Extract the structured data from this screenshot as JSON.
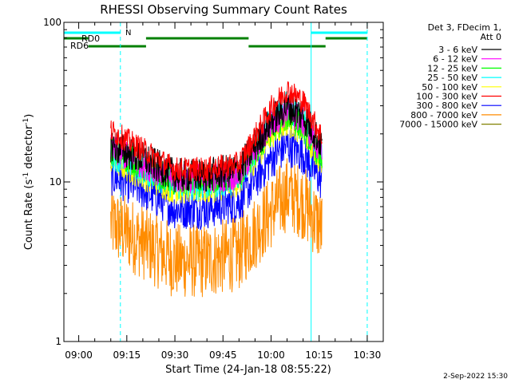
{
  "chart_data": {
    "type": "line",
    "title": "RHESSI Observing Summary Count Rates",
    "xlabel": "Start Time (24-Jan-18 08:55:22)",
    "ylabel": "Count Rate (s",
    "ylabel_sup": "-1",
    "ylabel_tail": " detector",
    "ylabel_sup2": "-1",
    "ylabel_close": ")",
    "yscale": "log",
    "ylim": [
      1,
      100
    ],
    "y_ticks": [
      {
        "value": 1,
        "label": "1"
      },
      {
        "value": 10,
        "label": "10"
      },
      {
        "value": 100,
        "label": "100"
      }
    ],
    "xlim": [
      "08:55:22",
      "10:35:00"
    ],
    "x_ticks": [
      {
        "value": "09:00",
        "label": "09:00"
      },
      {
        "value": "09:15",
        "label": "09:15"
      },
      {
        "value": "09:30",
        "label": "09:30"
      },
      {
        "value": "09:45",
        "label": "09:45"
      },
      {
        "value": "10:00",
        "label": "10:00"
      },
      {
        "value": "10:15",
        "label": "10:15"
      },
      {
        "value": "10:30",
        "label": "10:30"
      }
    ],
    "legend_header": [
      "Det 3, FDecim 1,",
      "Att 0"
    ],
    "legend_position": "right",
    "footer_date": "2-Sep-2022 15:30",
    "series": [
      {
        "name": "3 - 6 keV",
        "color": "#000000",
        "x": [
          "09:10",
          "09:20",
          "09:30",
          "09:40",
          "09:50",
          "10:00",
          "10:05",
          "10:10",
          "10:16"
        ],
        "values": [
          17,
          14,
          11,
          11,
          12,
          24,
          30,
          26,
          17
        ]
      },
      {
        "name": "6 - 12 keV",
        "color": "#ff00ff",
        "x": [
          "09:10",
          "09:20",
          "09:30",
          "09:40",
          "09:50",
          "10:00",
          "10:05",
          "10:10",
          "10:16"
        ],
        "values": [
          16,
          13,
          10.5,
          10.5,
          11,
          23,
          28,
          24,
          15
        ]
      },
      {
        "name": "12 - 25 keV",
        "color": "#00ff00",
        "x": [
          "09:10",
          "09:20",
          "09:30",
          "09:40",
          "09:50",
          "10:00",
          "10:05",
          "10:10",
          "10:16"
        ],
        "values": [
          16,
          12.5,
          10,
          10,
          11,
          21,
          26,
          22,
          14
        ]
      },
      {
        "name": "25 - 50 keV",
        "color": "#00ffff",
        "x": [
          "09:10",
          "09:20",
          "09:30",
          "09:40",
          "09:50",
          "10:00",
          "10:05",
          "10:10",
          "10:16"
        ],
        "values": [
          15,
          12,
          9.5,
          9.5,
          10.5,
          24,
          30,
          25,
          15
        ]
      },
      {
        "name": "50 - 100 keV",
        "color": "#ffff00",
        "x": [
          "09:10",
          "09:20",
          "09:30",
          "09:40",
          "09:50",
          "10:00",
          "10:05",
          "10:10",
          "10:16"
        ],
        "values": [
          14,
          11,
          9,
          9,
          10,
          20,
          24,
          21,
          13
        ]
      },
      {
        "name": "100 - 300 keV",
        "color": "#ff0000",
        "x": [
          "09:10",
          "09:20",
          "09:30",
          "09:40",
          "09:50",
          "10:00",
          "10:05",
          "10:10",
          "10:16"
        ],
        "values": [
          21,
          16,
          12,
          12,
          13,
          29,
          38,
          32,
          19
        ]
      },
      {
        "name": "300 - 800 keV",
        "color": "#0000ff",
        "x": [
          "09:10",
          "09:20",
          "09:30",
          "09:40",
          "09:50",
          "10:00",
          "10:05",
          "10:10",
          "10:16"
        ],
        "values": [
          11,
          9,
          6.8,
          6.8,
          7.5,
          14,
          17,
          15,
          10
        ]
      },
      {
        "name": "800 - 7000 keV",
        "color": "#ff8c00",
        "x": [
          "09:10",
          "09:20",
          "09:30",
          "09:40",
          "09:50",
          "10:00",
          "10:05",
          "10:10",
          "10:16"
        ],
        "values": [
          5.5,
          4.2,
          3.2,
          3.2,
          3.6,
          6.5,
          8.5,
          7.5,
          5
        ]
      },
      {
        "name": "7000 - 15000 keV",
        "color": "#808000",
        "x": [],
        "values": []
      }
    ],
    "annotations": [
      {
        "label": "RD0",
        "color": "#008000"
      },
      {
        "label": "RD6",
        "color": "#008000"
      },
      {
        "label": "N",
        "color": "#00ffff"
      }
    ],
    "status_bars": [
      {
        "row": "cyan",
        "color": "#00ffff",
        "start": "08:55:22",
        "end": "09:13:00"
      },
      {
        "row": "cyan",
        "color": "#00ffff",
        "start": "10:12:30",
        "end": "10:30:00"
      },
      {
        "row": "upper",
        "color": "#008000",
        "start": "08:55:22",
        "end": "09:03:00"
      },
      {
        "row": "upper",
        "color": "#008000",
        "start": "09:21:00",
        "end": "09:53:00"
      },
      {
        "row": "upper",
        "color": "#008000",
        "start": "10:17:00",
        "end": "10:30:00"
      },
      {
        "row": "lower",
        "color": "#008000",
        "start": "09:03:00",
        "end": "09:21:00"
      },
      {
        "row": "lower",
        "color": "#008000",
        "start": "09:53:00",
        "end": "10:17:00"
      }
    ],
    "vlines": [
      {
        "x": "09:13:00",
        "color": "#00ffff",
        "style": "dashed"
      },
      {
        "x": "10:12:30",
        "color": "#00ffff",
        "style": "solid"
      },
      {
        "x": "10:30:00",
        "color": "#00ffff",
        "style": "dashed"
      }
    ]
  }
}
